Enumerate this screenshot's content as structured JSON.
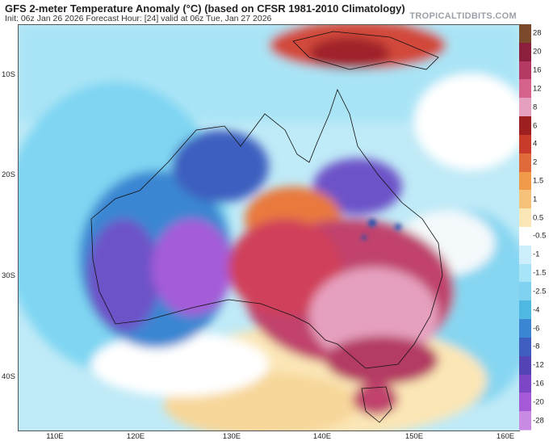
{
  "header": {
    "title": "GFS 2-meter Temperature Anomaly (°C) (based on CFSR 1981-2010 Climatology)",
    "subtitle": "Init: 06z Jan 26 2026   Forecast Hour: [24]   valid at 06z Tue, Jan 27 2026",
    "brand": "TROPICALTIDBITS.COM"
  },
  "map": {
    "lat_labels": [
      "10S",
      "20S",
      "30S",
      "40S"
    ],
    "lon_labels": [
      "110E",
      "120E",
      "130E",
      "140E",
      "150E",
      "160E"
    ]
  },
  "legend": {
    "labels": [
      "28",
      "20",
      "16",
      "12",
      "8",
      "6",
      "4",
      "2",
      "1.5",
      "1",
      "0.5",
      "-0.5",
      "-1",
      "-1.5",
      "-2.5",
      "-4",
      "-6",
      "-8",
      "-12",
      "-16",
      "-20",
      "-28"
    ],
    "colors": [
      "#7a4a2a",
      "#8c1f3c",
      "#b43a63",
      "#d5628a",
      "#e6a0bf",
      "#9e1f1f",
      "#c83b2a",
      "#e06a3a",
      "#f09a4a",
      "#f6c27a",
      "#fbe7b5",
      "#ffffff",
      "#cdeefc",
      "#a8e4f8",
      "#7fd2ef",
      "#4fb9e2",
      "#3b86d2",
      "#3e5fc0",
      "#5445b4",
      "#7b47c4",
      "#a45ad6",
      "#c98ae4"
    ],
    "colors_note_count": 22
  }
}
